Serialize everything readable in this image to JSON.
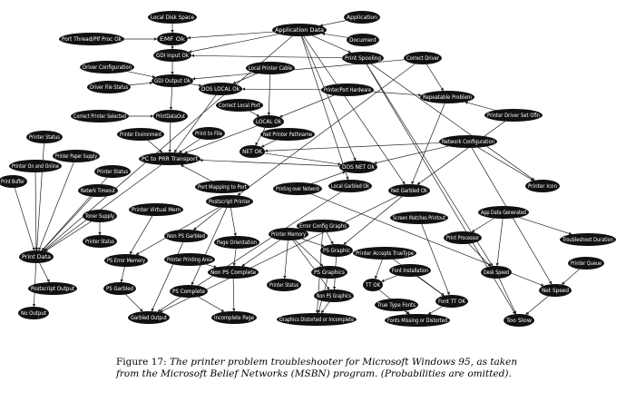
{
  "nodes": [
    {
      "id": "local_disk_space",
      "label": "Local Disk Space"
    },
    {
      "id": "application",
      "label": "Application"
    },
    {
      "id": "print_thread",
      "label": "Port Thread/Pif Proc Ok"
    },
    {
      "id": "emf_ok",
      "label": "EMF Ok"
    },
    {
      "id": "application_data",
      "label": "Application Data"
    },
    {
      "id": "document",
      "label": "Document"
    },
    {
      "id": "gdi_input_ok",
      "label": "GDI Input Ok"
    },
    {
      "id": "print_spooling",
      "label": "Print Spooling"
    },
    {
      "id": "correct_driver",
      "label": "Correct Driver"
    },
    {
      "id": "driver_configuration",
      "label": "Driver Configuration"
    },
    {
      "id": "local_printer_cable",
      "label": "Local Printer Cable"
    },
    {
      "id": "gdi_output_ok",
      "label": "GDI Output Ok"
    },
    {
      "id": "driver_file_status",
      "label": "Driver File Status"
    },
    {
      "id": "dos_local_ok",
      "label": "DOS LOCAL Ok"
    },
    {
      "id": "printer_port_hardware",
      "label": "Printer/Port Hardware"
    },
    {
      "id": "repeatable_problem",
      "label": "Repeatable Problem"
    },
    {
      "id": "correct_local_port",
      "label": "Correct Local Port"
    },
    {
      "id": "correct_printer_selected",
      "label": "Correct Printer Selected"
    },
    {
      "id": "print_data_ok",
      "label": "PrintDataOut"
    },
    {
      "id": "local_ok",
      "label": "LOCAL Ok"
    },
    {
      "id": "printer_driver_settings",
      "label": "Printer Driver Set Ofln"
    },
    {
      "id": "net_printer_path",
      "label": "Net Printer Pathname"
    },
    {
      "id": "printer_environment",
      "label": "Printer Environment"
    },
    {
      "id": "print_to_file",
      "label": "Print to File"
    },
    {
      "id": "printer_status_top",
      "label": "Printer Status"
    },
    {
      "id": "net_ok",
      "label": "NET OK"
    },
    {
      "id": "network_configuration",
      "label": "Network Configuration"
    },
    {
      "id": "printer_paper_supply",
      "label": "Printer Paper Supply"
    },
    {
      "id": "pc_to_printer_transport",
      "label": "PC to PRR Transport"
    },
    {
      "id": "printer_on_and_online",
      "label": "Printer On and Online"
    },
    {
      "id": "printer_status_mid",
      "label": "Printer Status"
    },
    {
      "id": "dos_net_ok",
      "label": "DOS NET Ok"
    },
    {
      "id": "print_buffer",
      "label": "Print Buffer"
    },
    {
      "id": "network_timeout",
      "label": "Netwrk Timeout"
    },
    {
      "id": "printer_icon",
      "label": "Printer Icon"
    },
    {
      "id": "port_mapping",
      "label": "Port Mapping to Port"
    },
    {
      "id": "printing_over_network",
      "label": "Printing over Network"
    },
    {
      "id": "local_garbled",
      "label": "Local Garbled Ok"
    },
    {
      "id": "net_garbled",
      "label": "Net Garbled Ok"
    },
    {
      "id": "postscript_printer",
      "label": "Postscript Printer"
    },
    {
      "id": "printer_virtual_memory",
      "label": "Printer Virtual Mem"
    },
    {
      "id": "app_data_generated",
      "label": "App Data Generated"
    },
    {
      "id": "toner_supply",
      "label": "Toner Supply"
    },
    {
      "id": "error_config_graphics",
      "label": "Error Config Graphs"
    },
    {
      "id": "screen_matches_printout",
      "label": "Screen Matches Printout"
    },
    {
      "id": "printer_memory",
      "label": "Printer Memory"
    },
    {
      "id": "printer_status_left",
      "label": "Printer Status"
    },
    {
      "id": "non_ps_garbled",
      "label": "Non PS Garbled"
    },
    {
      "id": "page_orientation",
      "label": "Page Orientation"
    },
    {
      "id": "print_processor",
      "label": "Print Processor"
    },
    {
      "id": "ps_graphic_a",
      "label": "PS Graphic"
    },
    {
      "id": "troubleshoot_duration",
      "label": "Troubleshoot Duration"
    },
    {
      "id": "printer_accepts_truetype",
      "label": "Printer Accepts TrueType"
    },
    {
      "id": "print_data",
      "label": "Print Data"
    },
    {
      "id": "ps_error_memory",
      "label": "PS Error Memory"
    },
    {
      "id": "printer_printing_area",
      "label": "Printer Printing Area"
    },
    {
      "id": "desk_speed",
      "label": "Desk Speed"
    },
    {
      "id": "printer_queue",
      "label": "Printer Queue"
    },
    {
      "id": "postscript_output",
      "label": "Postscript Output"
    },
    {
      "id": "non_ps_complete",
      "label": "Non PS Complete"
    },
    {
      "id": "ps_graphics_b",
      "label": "PS Graphics"
    },
    {
      "id": "font_installation",
      "label": "Font Installation"
    },
    {
      "id": "ps_garbled",
      "label": "PS Garbled"
    },
    {
      "id": "ps_complete",
      "label": "PS Complete"
    },
    {
      "id": "printer_status_low",
      "label": "Printer Status"
    },
    {
      "id": "tt_ok",
      "label": "TT OK"
    },
    {
      "id": "net_speed",
      "label": "Net Speed"
    },
    {
      "id": "non_ps_graphics",
      "label": "Non PS Graphics"
    },
    {
      "id": "font_tt_ok",
      "label": "Font TT OK"
    },
    {
      "id": "garbled_output",
      "label": "Garbled Output"
    },
    {
      "id": "incomplete_page",
      "label": "Incomplete Page"
    },
    {
      "id": "true_type_fonts",
      "label": "True Type Fonts"
    },
    {
      "id": "no_output",
      "label": "No Output"
    },
    {
      "id": "graphics_distorted",
      "label": "Graphics Distorted or Incomplete"
    },
    {
      "id": "fonts_missing",
      "label": "Fonts Missing or Distorted"
    },
    {
      "id": "too_slow",
      "label": "Too Slow"
    }
  ],
  "edges": [
    [
      "local_disk_space",
      "emf_ok"
    ],
    [
      "print_thread",
      "emf_ok"
    ],
    [
      "application",
      "application_data"
    ],
    [
      "document",
      "application_data"
    ],
    [
      "application_data",
      "emf_ok"
    ],
    [
      "application_data",
      "gdi_input_ok"
    ],
    [
      "emf_ok",
      "gdi_input_ok"
    ],
    [
      "application_data",
      "print_spooling"
    ],
    [
      "application_data",
      "print_data"
    ],
    [
      "application_data",
      "net_garbled"
    ],
    [
      "application_data",
      "local_garbled"
    ],
    [
      "application_data",
      "dos_net_ok"
    ],
    [
      "print_spooling",
      "gdi_input_ok"
    ],
    [
      "print_spooling",
      "printer_icon"
    ],
    [
      "print_spooling",
      "too_slow"
    ],
    [
      "print_spooling",
      "desk_speed"
    ],
    [
      "correct_driver",
      "gdi_output_ok"
    ],
    [
      "correct_driver",
      "postscript_printer"
    ],
    [
      "correct_driver",
      "repeatable_problem"
    ],
    [
      "gdi_input_ok",
      "gdi_output_ok"
    ],
    [
      "driver_configuration",
      "gdi_output_ok"
    ],
    [
      "driver_file_status",
      "gdi_output_ok"
    ],
    [
      "gdi_output_ok",
      "print_data_ok"
    ],
    [
      "gdi_output_ok",
      "dos_local_ok"
    ],
    [
      "correct_printer_selected",
      "print_data_ok"
    ],
    [
      "local_printer_cable",
      "dos_local_ok"
    ],
    [
      "local_printer_cable",
      "local_ok"
    ],
    [
      "printer_port_hardware",
      "local_ok"
    ],
    [
      "printer_port_hardware",
      "dos_local_ok"
    ],
    [
      "printer_port_hardware",
      "repeatable_problem"
    ],
    [
      "correct_local_port",
      "local_ok"
    ],
    [
      "dos_local_ok",
      "pc_to_printer_transport"
    ],
    [
      "local_ok",
      "pc_to_printer_transport"
    ],
    [
      "local_ok",
      "net_ok"
    ],
    [
      "net_printer_path",
      "net_ok"
    ],
    [
      "print_data_ok",
      "pc_to_printer_transport"
    ],
    [
      "printer_environment",
      "pc_to_printer_transport"
    ],
    [
      "print_to_file",
      "pc_to_printer_transport"
    ],
    [
      "net_ok",
      "dos_net_ok"
    ],
    [
      "network_configuration",
      "net_ok"
    ],
    [
      "network_configuration",
      "dos_net_ok"
    ],
    [
      "network_configuration",
      "printer_icon"
    ],
    [
      "network_configuration",
      "net_speed"
    ],
    [
      "printer_driver_settings",
      "net_garbled"
    ],
    [
      "printer_driver_settings",
      "repeatable_problem"
    ],
    [
      "dos_net_ok",
      "pc_to_printer_transport"
    ],
    [
      "printer_status_top",
      "print_data"
    ],
    [
      "printer_paper_supply",
      "print_data"
    ],
    [
      "printer_on_and_online",
      "print_data"
    ],
    [
      "printer_status_mid",
      "print_data"
    ],
    [
      "print_buffer",
      "print_data"
    ],
    [
      "network_timeout",
      "print_data"
    ],
    [
      "pc_to_printer_transport",
      "print_data"
    ],
    [
      "port_mapping",
      "pc_to_printer_transport"
    ],
    [
      "printing_over_network",
      "dos_net_ok"
    ],
    [
      "printing_over_network",
      "net_speed"
    ],
    [
      "postscript_printer",
      "ps_error_memory"
    ],
    [
      "postscript_printer",
      "non_ps_garbled"
    ],
    [
      "postscript_printer",
      "page_orientation"
    ],
    [
      "postscript_printer",
      "ps_complete"
    ],
    [
      "printer_virtual_memory",
      "ps_error_memory"
    ],
    [
      "toner_supply",
      "printer_status_left"
    ],
    [
      "toner_supply",
      "print_data"
    ],
    [
      "print_data",
      "postscript_output"
    ],
    [
      "print_data",
      "no_output"
    ],
    [
      "ps_error_memory",
      "ps_garbled"
    ],
    [
      "non_ps_garbled",
      "garbled_output"
    ],
    [
      "ps_garbled",
      "garbled_output"
    ],
    [
      "printer_printing_area",
      "non_ps_complete"
    ],
    [
      "page_orientation",
      "non_ps_complete"
    ],
    [
      "ps_complete",
      "incomplete_page"
    ],
    [
      "non_ps_complete",
      "incomplete_page"
    ],
    [
      "printer_memory",
      "ps_graphic_a"
    ],
    [
      "printer_memory",
      "ps_graphics_b"
    ],
    [
      "printer_memory",
      "non_ps_graphics"
    ],
    [
      "printer_memory",
      "printer_status_low"
    ],
    [
      "printer_memory",
      "non_ps_complete"
    ],
    [
      "error_config_graphics",
      "ps_graphic_a"
    ],
    [
      "error_config_graphics",
      "graphics_distorted"
    ],
    [
      "ps_graphic_a",
      "non_ps_graphics"
    ],
    [
      "ps_graphics_b",
      "graphics_distorted"
    ],
    [
      "non_ps_graphics",
      "graphics_distorted"
    ],
    [
      "printer_accepts_truetype",
      "tt_ok"
    ],
    [
      "font_installation",
      "tt_ok"
    ],
    [
      "font_installation",
      "font_tt_ok"
    ],
    [
      "tt_ok",
      "fonts_missing"
    ],
    [
      "true_type_fonts",
      "fonts_missing"
    ],
    [
      "font_tt_ok",
      "fonts_missing"
    ],
    [
      "screen_matches_printout",
      "font_tt_ok"
    ],
    [
      "app_data_generated",
      "print_processor"
    ],
    [
      "app_data_generated",
      "troubleshoot_duration"
    ],
    [
      "app_data_generated",
      "desk_speed"
    ],
    [
      "print_processor",
      "desk_speed"
    ],
    [
      "desk_speed",
      "too_slow"
    ],
    [
      "printer_queue",
      "net_speed"
    ],
    [
      "net_speed",
      "too_slow"
    ],
    [
      "net_garbled",
      "garbled_output"
    ],
    [
      "local_garbled",
      "garbled_output"
    ],
    [
      "net_garbled",
      "ps_graphic_a"
    ],
    [
      "repeatable_problem",
      "net_garbled"
    ],
    [
      "printer_accepts_truetype",
      "font_tt_ok"
    ]
  ],
  "caption": {
    "figure_label": "Figure 17:",
    "text": "The printer problem troubleshooter for Microsoft Windows 95, as taken from the Microsoft Belief Networks (MSBN) program. (Probabilities are omitted)."
  }
}
